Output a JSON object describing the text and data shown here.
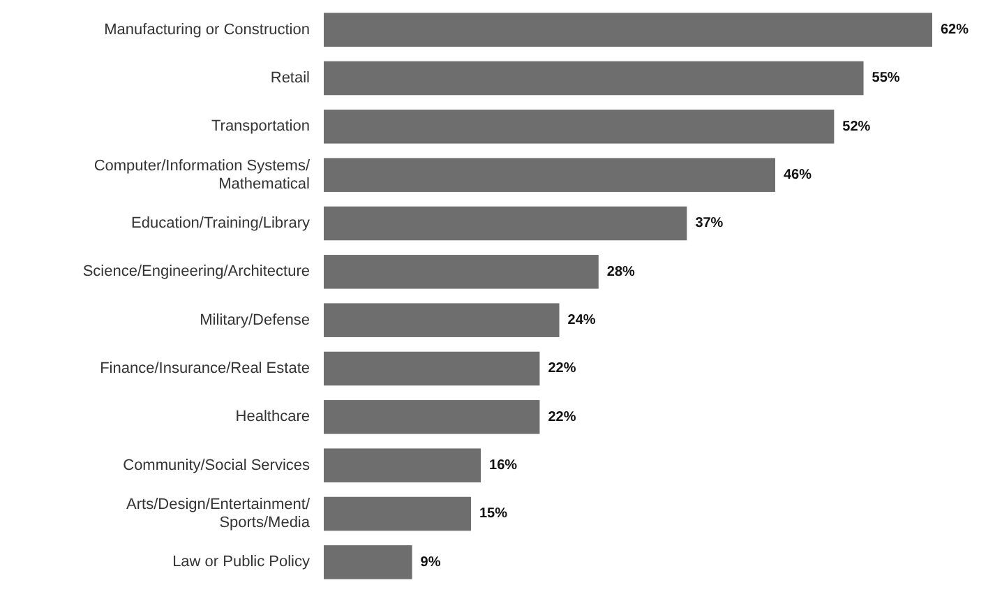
{
  "chart_data": {
    "type": "bar",
    "orientation": "horizontal",
    "categories": [
      "Manufacturing or Construction",
      "Retail",
      "Transportation",
      "Computer/Information Systems/ Mathematical",
      "Education/Training/Library",
      "Science/Engineering/Architecture",
      "Military/Defense",
      "Finance/Insurance/Real Estate",
      "Healthcare",
      "Community/Social Services",
      "Arts/Design/Entertainment/ Sports/Media",
      "Law or Public Policy"
    ],
    "values": [
      62,
      55,
      52,
      46,
      37,
      28,
      24,
      22,
      22,
      16,
      15,
      9
    ],
    "value_labels": [
      "62%",
      "55%",
      "52%",
      "46%",
      "37%",
      "28%",
      "24%",
      "22%",
      "22%",
      "16%",
      "15%",
      "9%"
    ],
    "color": "#6e6e6e"
  }
}
